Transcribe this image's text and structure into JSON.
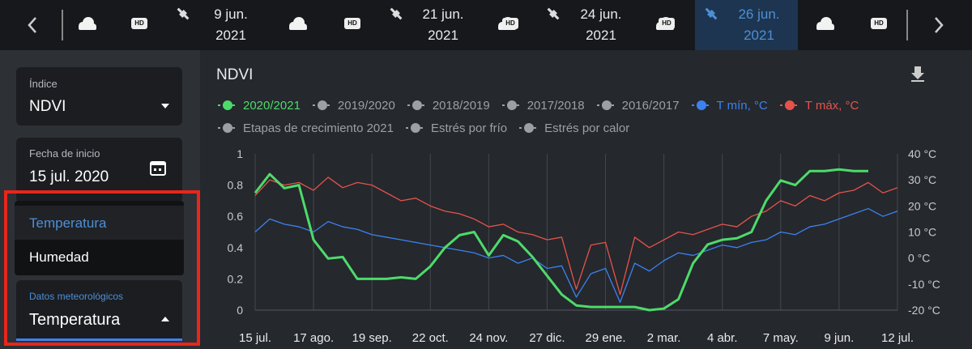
{
  "top_bar": {
    "hd_badges": [
      "HD",
      "HD",
      "HD",
      "HD",
      "HD"
    ],
    "images": [
      {
        "date": "9 jun.",
        "year": "2021"
      },
      {
        "date": "21 jun.",
        "year": "2021"
      },
      {
        "date": "24 jun.",
        "year": "2021"
      },
      {
        "date": "26 jun.",
        "year": "2021"
      }
    ]
  },
  "sidebar": {
    "index_field": {
      "label": "Índice",
      "value": "NDVI"
    },
    "start_date_field": {
      "label": "Fecha de inicio",
      "value": "15 jul. 2020"
    },
    "menu_options": [
      "Temperatura",
      "Humedad"
    ],
    "weather_field": {
      "label": "Datos meteorológicos",
      "value": "Temperatura"
    }
  },
  "chart_data": {
    "type": "line",
    "title": "NDVI",
    "grid": true,
    "categories": [
      "15 jul.",
      null,
      null,
      null,
      "17 ago.",
      null,
      null,
      null,
      "19 sep.",
      null,
      null,
      null,
      "22 oct.",
      null,
      null,
      null,
      "24 nov.",
      null,
      null,
      null,
      "27 dic.",
      null,
      null,
      null,
      "29 ene.",
      null,
      null,
      null,
      "2 mar.",
      null,
      null,
      null,
      "4 abr.",
      null,
      null,
      null,
      "7 may.",
      null,
      null,
      null,
      "9 jun.",
      null,
      null,
      null,
      "12 jul."
    ],
    "ylim": [
      0,
      1
    ],
    "yticks": [
      0,
      0.2,
      0.4,
      0.6,
      0.8,
      1
    ],
    "y2lim": [
      -20,
      40
    ],
    "y2ticks": [
      {
        "value": -20,
        "label": "-20 °C"
      },
      {
        "value": -10,
        "label": "-10 °C"
      },
      {
        "value": 0,
        "label": "0 °C"
      },
      {
        "value": 10,
        "label": "10 °C"
      },
      {
        "value": 20,
        "label": "20 °C"
      },
      {
        "value": 30,
        "label": "30 °C"
      },
      {
        "value": 40,
        "label": "40 °C"
      }
    ],
    "series": [
      {
        "name": "2020/2021",
        "color": "#4ddb6a",
        "values": [
          0.75,
          0.87,
          0.78,
          0.8,
          0.45,
          0.33,
          0.34,
          0.2,
          0.2,
          0.2,
          0.21,
          0.2,
          0.28,
          0.4,
          0.48,
          0.5,
          0.35,
          0.48,
          0.44,
          0.34,
          0.22,
          0.1,
          0.03,
          0.02,
          0.02,
          0.02,
          0.02,
          0,
          0.01,
          0.07,
          0.3,
          0.42,
          0.45,
          0.46,
          0.5,
          0.7,
          0.83,
          0.8,
          0.89,
          0.89,
          0.9,
          0.89,
          0.89,
          null,
          null
        ]
      },
      {
        "name": "2019/2020",
        "color": "#9aa0a6"
      },
      {
        "name": "2018/2019",
        "color": "#9aa0a6"
      },
      {
        "name": "2017/2018",
        "color": "#9aa0a6"
      },
      {
        "name": "2016/2017",
        "color": "#9aa0a6"
      },
      {
        "name": "T mín, °C",
        "color": "#3b82f0",
        "axis": "y2",
        "values": [
          10,
          15,
          13,
          12,
          10,
          14,
          12,
          11,
          9,
          8,
          7,
          6,
          5,
          4,
          3,
          2,
          0,
          1,
          -2,
          0,
          -4,
          -3,
          -15,
          -6,
          -4,
          -17,
          -2,
          -5,
          -1,
          2,
          1,
          3,
          5,
          4,
          6,
          7,
          10,
          9,
          12,
          13,
          15,
          17,
          19,
          16,
          18
        ]
      },
      {
        "name": "T máx, °C",
        "color": "#e5534b",
        "axis": "y2",
        "values": [
          24,
          30,
          28,
          29,
          26,
          31,
          27,
          29,
          28,
          25,
          22,
          23,
          20,
          18,
          17,
          15,
          12,
          13,
          10,
          9,
          7,
          8,
          -12,
          5,
          6,
          -14,
          8,
          4,
          7,
          10,
          9,
          11,
          13,
          12,
          16,
          18,
          22,
          20,
          24,
          22,
          25,
          26,
          29,
          25,
          27
        ]
      },
      {
        "name": "Etapas de crecimiento 2021",
        "color": "#9aa0a6"
      },
      {
        "name": "Estrés por frío",
        "color": "#9aa0a6"
      },
      {
        "name": "Estrés por calor",
        "color": "#9aa0a6"
      }
    ]
  }
}
